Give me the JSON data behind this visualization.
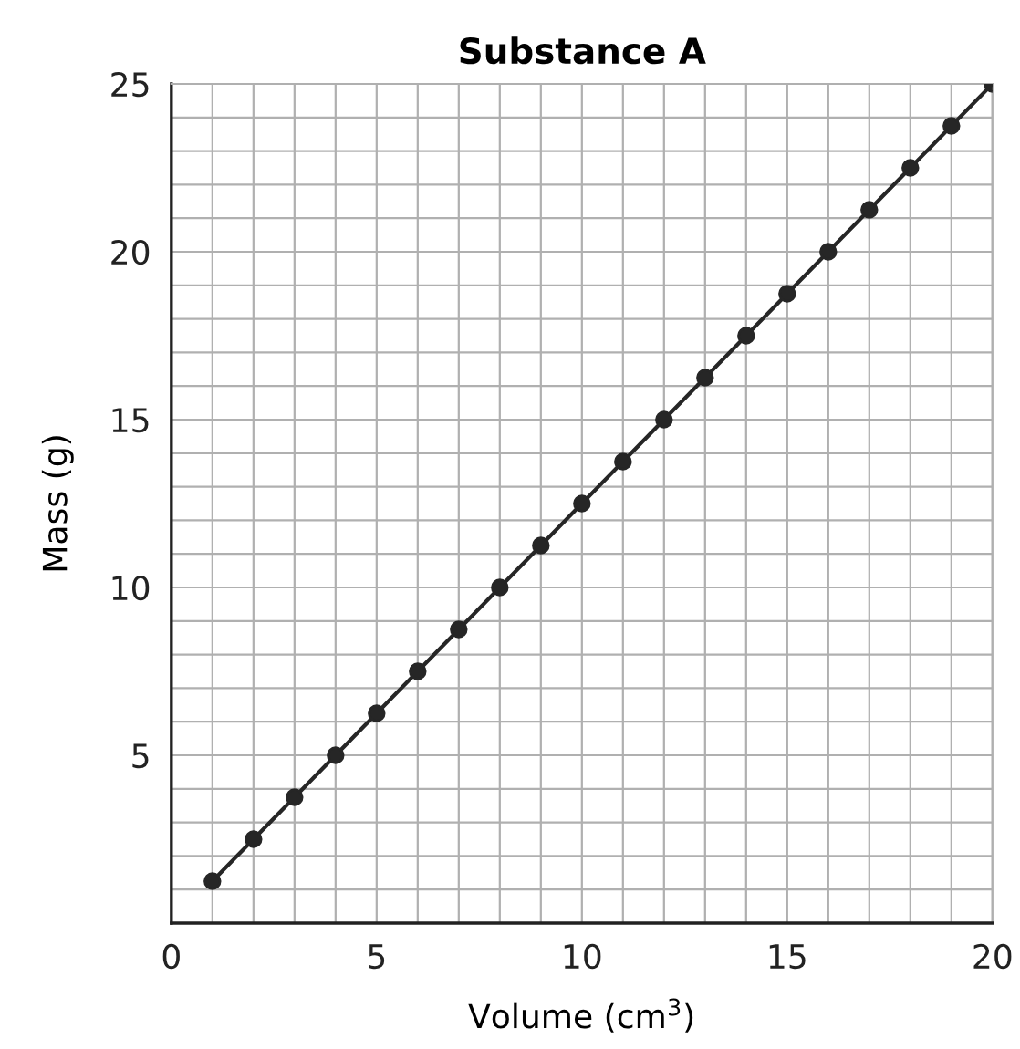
{
  "chart_data": {
    "type": "line",
    "title": "Substance A",
    "xlabel": "Volume (cm$^{3}$)",
    "ylabel": "Mass (g)",
    "x": [
      1,
      2,
      3,
      4,
      5,
      6,
      7,
      8,
      9,
      10,
      11,
      12,
      13,
      14,
      15,
      16,
      17,
      18,
      19,
      20
    ],
    "series": [
      {
        "color": "#262626",
        "values": [
          1.25,
          2.5,
          3.75,
          5,
          6.25,
          7.5,
          8.75,
          10,
          11.25,
          12.5,
          13.75,
          15,
          16.25,
          17.5,
          18.75,
          20,
          21.25,
          22.5,
          23.75,
          25
        ]
      }
    ],
    "xlim": [
      0,
      20
    ],
    "ylim": [
      0,
      25
    ],
    "xticks": [
      0,
      {
        "value": 1,
        "label": null
      },
      {
        "value": 2,
        "label": null
      },
      {
        "value": 3,
        "label": null
      },
      {
        "value": 4,
        "label": null
      },
      5,
      {
        "value": 6,
        "label": null
      },
      {
        "value": 7,
        "label": null
      },
      {
        "value": 8,
        "label": null
      },
      {
        "value": 9,
        "label": null
      },
      10,
      {
        "value": 11,
        "label": null
      },
      {
        "value": 12,
        "label": null
      },
      {
        "value": 13,
        "label": null
      },
      {
        "value": 14,
        "label": null
      },
      15,
      {
        "value": 16,
        "label": null
      },
      {
        "value": 17,
        "label": null
      },
      {
        "value": 18,
        "label": null
      },
      {
        "value": 19,
        "label": null
      },
      20
    ],
    "yticks": [
      {
        "value": 0,
        "label": null
      },
      {
        "value": 1,
        "label": null
      },
      {
        "value": 2,
        "label": null
      },
      {
        "value": 3,
        "label": null
      },
      {
        "value": 4,
        "label": null
      },
      5,
      {
        "value": 6,
        "label": null
      },
      {
        "value": 7,
        "label": null
      },
      {
        "value": 8,
        "label": null
      },
      {
        "value": 9,
        "label": null
      },
      10,
      {
        "value": 11,
        "label": null
      },
      {
        "value": 12,
        "label": null
      },
      {
        "value": 13,
        "label": null
      },
      {
        "value": 14,
        "label": null
      },
      15,
      {
        "value": 16,
        "label": null
      },
      {
        "value": 17,
        "label": null
      },
      {
        "value": 18,
        "label": null
      },
      {
        "value": 19,
        "label": null
      },
      20,
      {
        "value": 21,
        "label": null
      },
      {
        "value": 22,
        "label": null
      },
      {
        "value": 23,
        "label": null
      },
      {
        "value": 24,
        "label": null
      },
      25
    ],
    "grid": true,
    "marker": "circle",
    "line_style": "solid"
  }
}
